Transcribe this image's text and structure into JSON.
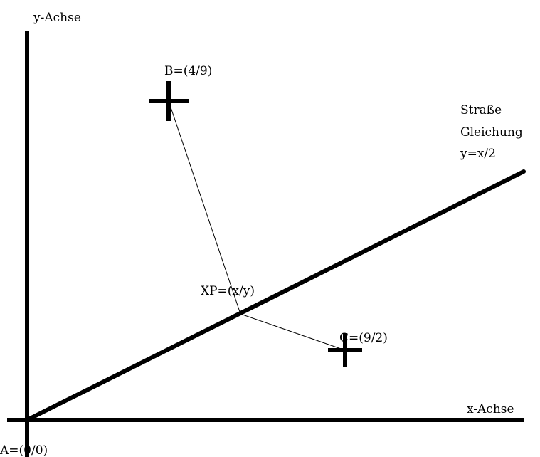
{
  "diagram": {
    "axes": {
      "y_label": "y-Achse",
      "x_label": "x-Achse"
    },
    "road": {
      "title_line1": "Straße",
      "title_line2": "Gleichung",
      "equation": "y=x/2"
    },
    "points": {
      "origin": "A=(0/0)",
      "b": "B=(4/9)",
      "c": "C=(9/2)",
      "xp": "XP=(x/y)"
    },
    "colors": {
      "ink": "#000000",
      "background": "#ffffff"
    }
  }
}
